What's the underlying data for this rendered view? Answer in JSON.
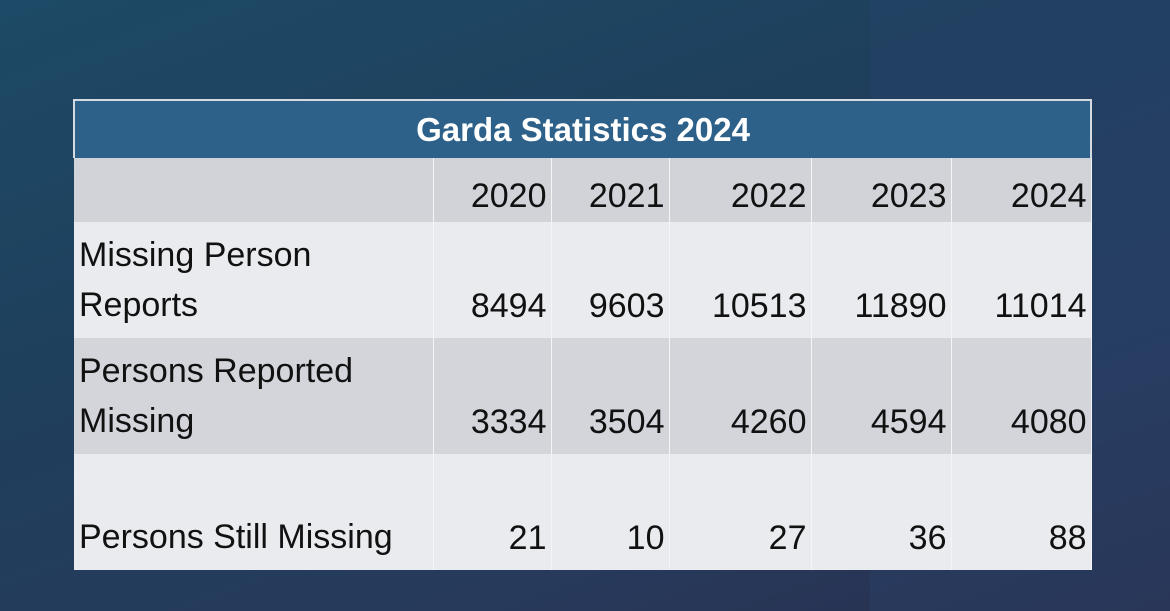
{
  "table": {
    "title": "Garda Statistics 2024",
    "columns": [
      "2020",
      "2021",
      "2022",
      "2023",
      "2024"
    ],
    "rows": [
      {
        "label": "Missing Person Reports",
        "values": [
          8494,
          9603,
          10513,
          11890,
          11014
        ]
      },
      {
        "label": "Persons Reported Missing",
        "values": [
          3334,
          3504,
          4260,
          4594,
          4080
        ]
      },
      {
        "label": "Persons Still Missing",
        "values": [
          21,
          10,
          27,
          36,
          88
        ]
      }
    ]
  }
}
